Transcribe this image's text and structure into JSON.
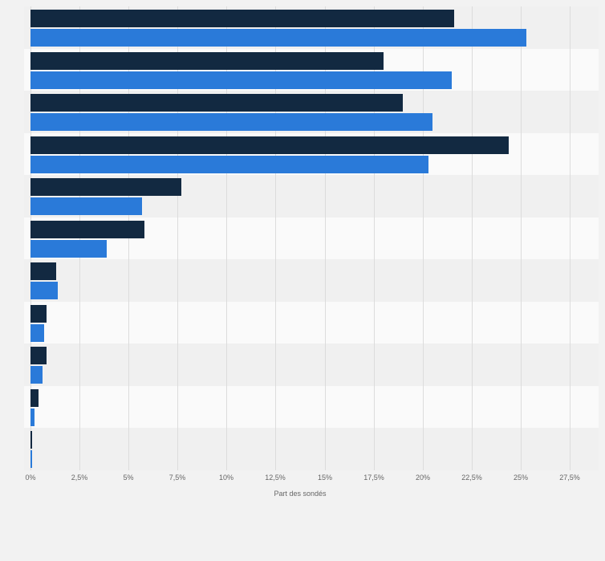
{
  "chart_data": {
    "type": "bar",
    "orientation": "horizontal",
    "xlabel": "Part des sondés",
    "x_ticks": [
      "0%",
      "2,5%",
      "5%",
      "7,5%",
      "10%",
      "12,5%",
      "15%",
      "17,5%",
      "20%",
      "22,5%",
      "25%",
      "27,5%"
    ],
    "xlim": [
      0,
      27.5
    ],
    "grid": "vertical",
    "legend_position": "none",
    "categories": [
      "",
      "",
      "",
      "",
      "",
      "",
      "",
      "",
      "",
      "",
      ""
    ],
    "series": [
      {
        "name": "series_1",
        "color": "#122941",
        "values": [
          21.6,
          18.0,
          19.0,
          24.4,
          7.7,
          5.8,
          1.3,
          0.8,
          0.8,
          0.4,
          0.1
        ]
      },
      {
        "name": "series_2",
        "color": "#2a7ad9",
        "values": [
          25.3,
          21.5,
          20.5,
          20.3,
          5.7,
          3.9,
          1.4,
          0.7,
          0.6,
          0.2,
          0.1
        ]
      }
    ],
    "row_band_colors": [
      "#f0f0f0",
      "#fafafa"
    ],
    "gridline_color": "#dcdcdc",
    "background_color": "#f2f2f2",
    "tick_label_color": "#666666"
  }
}
